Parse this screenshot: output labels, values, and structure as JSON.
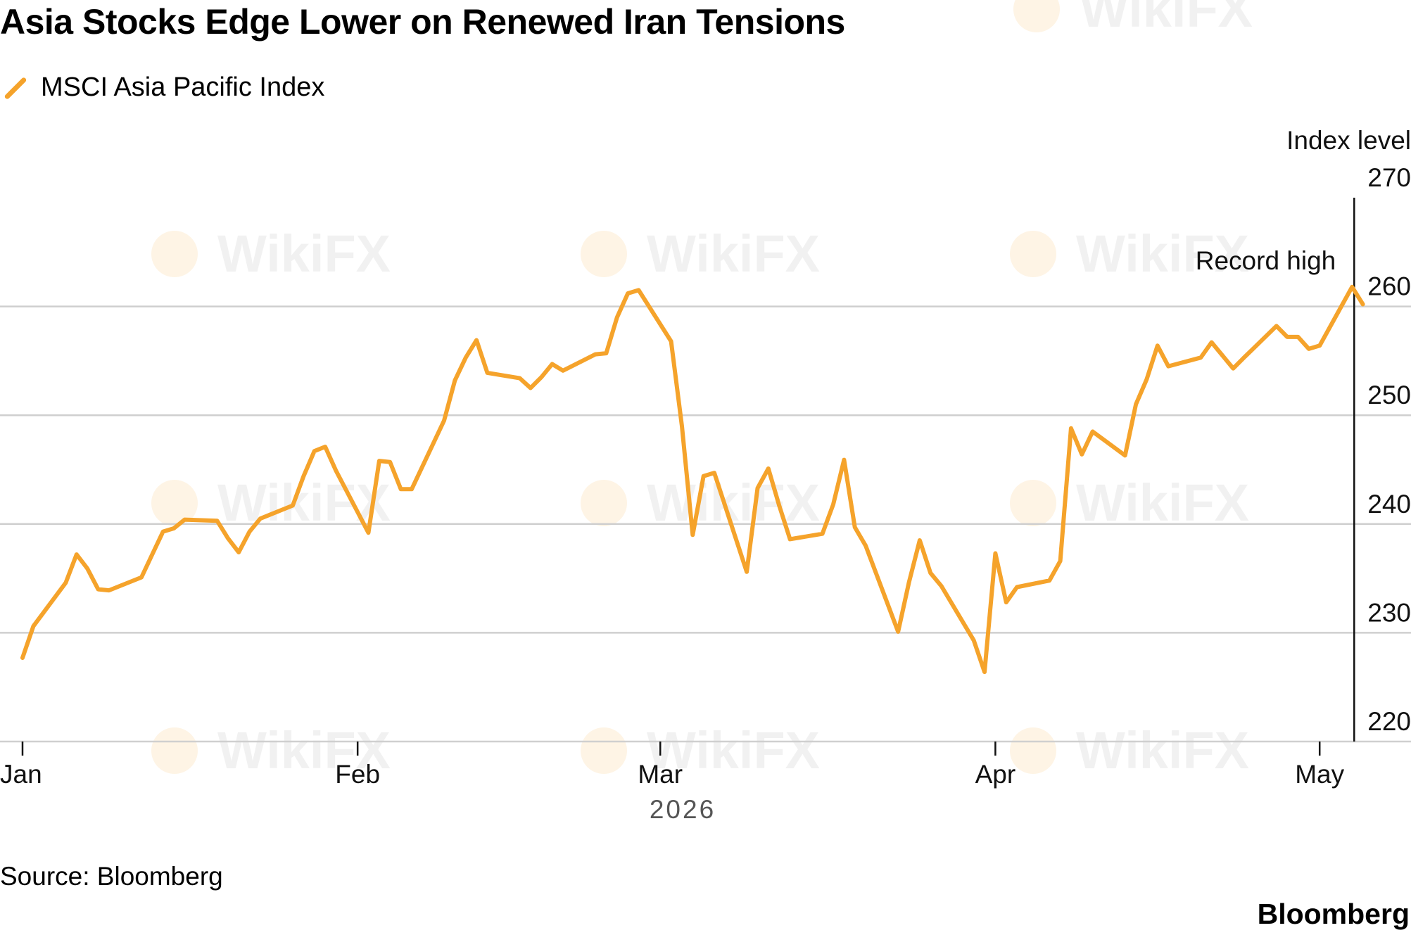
{
  "chart_data": {
    "type": "line",
    "title": "Asia Stocks Edge Lower on Renewed Iran Tensions",
    "ylabel": "Index level",
    "ylim": [
      220,
      270
    ],
    "yticks": [
      "270",
      "260",
      "250",
      "240",
      "230",
      "220"
    ],
    "xticks": [
      "Jan",
      "Feb",
      "Mar",
      "Apr",
      "May"
    ],
    "x_year": "2026",
    "grid": true,
    "legend_placement": "top-left",
    "series": [
      {
        "name": "MSCI Asia Pacific Index",
        "color": "#f5a32b",
        "points": [
          [
            "2026-01-01",
            227.7
          ],
          [
            "2026-01-02",
            230.6
          ],
          [
            "2026-01-05",
            234.6
          ],
          [
            "2026-01-06",
            237.2
          ],
          [
            "2026-01-07",
            235.9
          ],
          [
            "2026-01-08",
            234.0
          ],
          [
            "2026-01-09",
            233.9
          ],
          [
            "2026-01-12",
            235.1
          ],
          [
            "2026-01-13",
            237.2
          ],
          [
            "2026-01-14",
            239.3
          ],
          [
            "2026-01-15",
            239.6
          ],
          [
            "2026-01-16",
            240.4
          ],
          [
            "2026-01-19",
            240.3
          ],
          [
            "2026-01-20",
            238.7
          ],
          [
            "2026-01-21",
            237.4
          ],
          [
            "2026-01-22",
            239.3
          ],
          [
            "2026-01-23",
            240.5
          ],
          [
            "2026-01-26",
            241.7
          ],
          [
            "2026-01-27",
            244.4
          ],
          [
            "2026-01-28",
            246.7
          ],
          [
            "2026-01-29",
            247.1
          ],
          [
            "2026-01-30",
            244.9
          ],
          [
            "2026-02-02",
            239.2
          ],
          [
            "2026-02-03",
            245.8
          ],
          [
            "2026-02-04",
            245.7
          ],
          [
            "2026-02-05",
            243.2
          ],
          [
            "2026-02-06",
            243.2
          ],
          [
            "2026-02-09",
            249.5
          ],
          [
            "2026-02-10",
            253.2
          ],
          [
            "2026-02-11",
            255.3
          ],
          [
            "2026-02-12",
            256.9
          ],
          [
            "2026-02-13",
            253.9
          ],
          [
            "2026-02-16",
            253.4
          ],
          [
            "2026-02-17",
            252.5
          ],
          [
            "2026-02-18",
            253.5
          ],
          [
            "2026-02-19",
            254.7
          ],
          [
            "2026-02-20",
            254.1
          ],
          [
            "2026-02-23",
            255.6
          ],
          [
            "2026-02-24",
            255.7
          ],
          [
            "2026-02-25",
            259.0
          ],
          [
            "2026-02-26",
            261.2
          ],
          [
            "2026-02-27",
            261.5
          ],
          [
            "2026-03-02",
            256.8
          ],
          [
            "2026-03-03",
            249.0
          ],
          [
            "2026-03-04",
            239.0
          ],
          [
            "2026-03-05",
            244.4
          ],
          [
            "2026-03-06",
            244.7
          ],
          [
            "2026-03-09",
            235.6
          ],
          [
            "2026-03-10",
            243.3
          ],
          [
            "2026-03-11",
            245.1
          ],
          [
            "2026-03-12",
            241.7
          ],
          [
            "2026-03-13",
            238.6
          ],
          [
            "2026-03-16",
            239.1
          ],
          [
            "2026-03-17",
            241.8
          ],
          [
            "2026-03-18",
            245.9
          ],
          [
            "2026-03-19",
            239.7
          ],
          [
            "2026-03-20",
            238.0
          ],
          [
            "2026-03-23",
            230.1
          ],
          [
            "2026-03-24",
            234.6
          ],
          [
            "2026-03-25",
            238.5
          ],
          [
            "2026-03-26",
            235.5
          ],
          [
            "2026-03-27",
            234.3
          ],
          [
            "2026-03-30",
            229.3
          ],
          [
            "2026-03-31",
            226.4
          ],
          [
            "2026-04-01",
            237.3
          ],
          [
            "2026-04-02",
            232.8
          ],
          [
            "2026-04-03",
            234.2
          ],
          [
            "2026-04-06",
            234.8
          ],
          [
            "2026-04-07",
            236.6
          ],
          [
            "2026-04-08",
            248.8
          ],
          [
            "2026-04-09",
            246.4
          ],
          [
            "2026-04-10",
            248.5
          ],
          [
            "2026-04-13",
            246.3
          ],
          [
            "2026-04-14",
            251.0
          ],
          [
            "2026-04-15",
            253.3
          ],
          [
            "2026-04-16",
            256.4
          ],
          [
            "2026-04-17",
            254.5
          ],
          [
            "2026-04-20",
            255.3
          ],
          [
            "2026-04-21",
            256.7
          ],
          [
            "2026-04-22",
            255.5
          ],
          [
            "2026-04-23",
            254.3
          ],
          [
            "2026-04-24",
            255.3
          ],
          [
            "2026-04-27",
            258.2
          ],
          [
            "2026-04-28",
            257.2
          ],
          [
            "2026-04-29",
            257.2
          ],
          [
            "2026-04-30",
            256.1
          ],
          [
            "2026-05-01",
            256.4
          ],
          [
            "2026-05-04",
            261.8
          ],
          [
            "2026-05-05",
            260.2
          ]
        ]
      }
    ],
    "annotations": [
      {
        "text": "Record high",
        "date": "2026-05-04",
        "marker": "vertical-line"
      }
    ]
  },
  "source": "Source: Bloomberg",
  "brand": "Bloomberg",
  "watermark_text": "WikiFX"
}
